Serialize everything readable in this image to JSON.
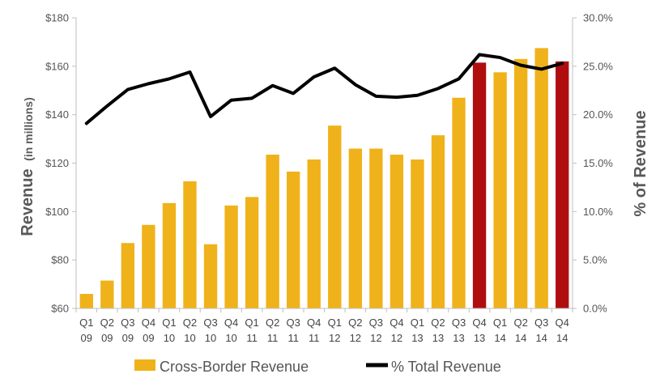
{
  "chart_data": {
    "type": "bar",
    "categories": [
      [
        "Q1",
        "09"
      ],
      [
        "Q2",
        "09"
      ],
      [
        "Q3",
        "09"
      ],
      [
        "Q4",
        "09"
      ],
      [
        "Q1",
        "10"
      ],
      [
        "Q2",
        "10"
      ],
      [
        "Q3",
        "10"
      ],
      [
        "Q4",
        "10"
      ],
      [
        "Q1",
        "11"
      ],
      [
        "Q2",
        "11"
      ],
      [
        "Q3",
        "11"
      ],
      [
        "Q4",
        "11"
      ],
      [
        "Q1",
        "12"
      ],
      [
        "Q2",
        "12"
      ],
      [
        "Q3",
        "12"
      ],
      [
        "Q4",
        "12"
      ],
      [
        "Q1",
        "13"
      ],
      [
        "Q2",
        "13"
      ],
      [
        "Q3",
        "13"
      ],
      [
        "Q4",
        "13"
      ],
      [
        "Q1",
        "14"
      ],
      [
        "Q2",
        "14"
      ],
      [
        "Q3",
        "14"
      ],
      [
        "Q4",
        "14"
      ]
    ],
    "series": [
      {
        "name": "Cross-Border Revenue",
        "type": "bar",
        "axis": "left",
        "color": "#F0B21A",
        "highlight_color": "#B00E0E",
        "highlight_indices": [
          19,
          23
        ],
        "values": [
          66,
          71.5,
          87,
          94.5,
          103.5,
          112.5,
          86.5,
          102.5,
          106,
          123.5,
          116.5,
          121.5,
          135.5,
          126,
          126,
          123.5,
          121.5,
          131.5,
          147,
          161.5,
          157.5,
          163,
          167.5,
          162
        ]
      },
      {
        "name": "% Total Revenue",
        "type": "line",
        "axis": "right",
        "color": "#000000",
        "values": [
          19.1,
          20.9,
          22.6,
          23.2,
          23.7,
          24.4,
          19.8,
          21.5,
          21.7,
          23.0,
          22.2,
          23.9,
          24.8,
          23.1,
          21.9,
          21.8,
          22.0,
          22.7,
          23.7,
          26.2,
          25.9,
          25.1,
          24.7,
          25.3
        ]
      }
    ],
    "ylabel": "Revenue",
    "ylabel_sub": "(in millions)",
    "y2label": "% of Revenue",
    "ylim": [
      60,
      180
    ],
    "y2lim": [
      0,
      30
    ],
    "y_ticks": [
      "$60",
      "$80",
      "$100",
      "$120",
      "$140",
      "$160",
      "$180"
    ],
    "y2_ticks": [
      "0.0%",
      "5.0%",
      "10.0%",
      "15.0%",
      "20.0%",
      "25.0%",
      "30.0%"
    ],
    "grid": false,
    "legend_position": "bottom"
  }
}
